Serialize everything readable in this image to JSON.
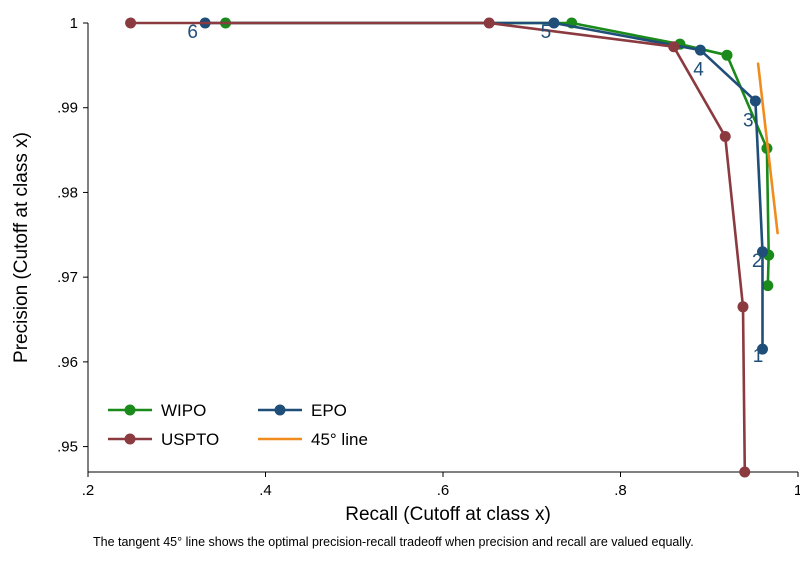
{
  "chart_data": {
    "type": "line",
    "xlabel": "Recall (Cutoff at class x)",
    "ylabel": "Precision (Cutoff at class x)",
    "xlim": [
      0.2,
      1.0
    ],
    "ylim": [
      0.947,
      1.0
    ],
    "x_ticks": [
      {
        "value": 0.2,
        "label": ".2"
      },
      {
        "value": 0.4,
        "label": ".4"
      },
      {
        "value": 0.6,
        "label": ".6"
      },
      {
        "value": 0.8,
        "label": ".8"
      },
      {
        "value": 1.0,
        "label": "1"
      }
    ],
    "y_ticks": [
      {
        "value": 0.95,
        "label": ".95"
      },
      {
        "value": 0.96,
        "label": ".96"
      },
      {
        "value": 0.97,
        "label": ".97"
      },
      {
        "value": 0.98,
        "label": ".98"
      },
      {
        "value": 0.99,
        "label": ".99"
      },
      {
        "value": 1.0,
        "label": "1"
      }
    ],
    "grid": false,
    "legend_position": "bottom-left",
    "series": [
      {
        "name": "WIPO",
        "color": "#1a8a1a",
        "marker": true,
        "points": [
          [
            0.355,
            1.0
          ],
          [
            0.745,
            1.0
          ],
          [
            0.867,
            0.9975
          ],
          [
            0.92,
            0.9962
          ],
          [
            0.965,
            0.9852
          ],
          [
            0.967,
            0.9726
          ],
          [
            0.966,
            0.969
          ]
        ]
      },
      {
        "name": "EPO",
        "color": "#1f4e79",
        "marker": true,
        "points": [
          [
            0.332,
            1.0
          ],
          [
            0.725,
            1.0
          ],
          [
            0.89,
            0.9968
          ],
          [
            0.952,
            0.9908
          ],
          [
            0.96,
            0.973
          ],
          [
            0.96,
            0.9615
          ]
        ]
      },
      {
        "name": "USPTO",
        "color": "#8b3a3f",
        "marker": true,
        "points": [
          [
            0.248,
            1.0
          ],
          [
            0.652,
            1.0
          ],
          [
            0.86,
            0.9972
          ],
          [
            0.918,
            0.9866
          ],
          [
            0.938,
            0.9665
          ],
          [
            0.94,
            0.947
          ]
        ]
      },
      {
        "name": "45° line",
        "color": "#f08c1e",
        "marker": false,
        "points": [
          [
            0.955,
            0.9952
          ],
          [
            0.977,
            0.9752
          ]
        ]
      }
    ],
    "annotations": [
      {
        "text": "1",
        "x": 0.955,
        "y": 0.96
      },
      {
        "text": "2",
        "x": 0.954,
        "y": 0.9712
      },
      {
        "text": "3",
        "x": 0.944,
        "y": 0.9878
      },
      {
        "text": "4",
        "x": 0.888,
        "y": 0.9938
      },
      {
        "text": "5",
        "x": 0.716,
        "y": 0.9982
      },
      {
        "text": "6",
        "x": 0.318,
        "y": 0.9982
      }
    ]
  },
  "note": "The tangent 45° line shows the optimal precision-recall tradeoff when precision and recall are valued equally."
}
